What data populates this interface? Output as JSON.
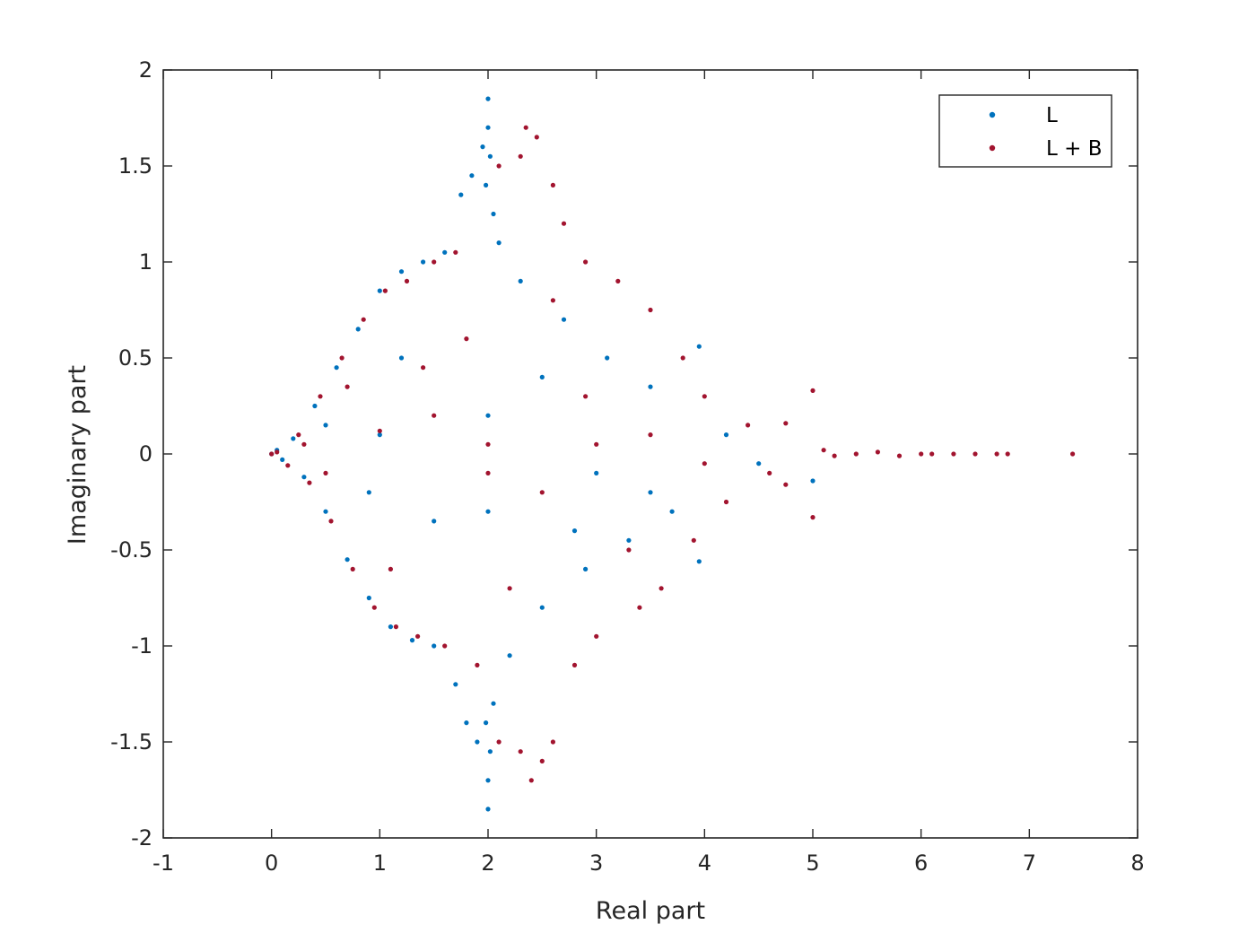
{
  "chart_data": {
    "type": "scatter",
    "title": "",
    "xlabel": "Real part",
    "ylabel": "Imaginary part",
    "xlim": [
      -1,
      8
    ],
    "ylim": [
      -2,
      2
    ],
    "xticks": [
      -1,
      0,
      1,
      2,
      3,
      4,
      5,
      6,
      7,
      8
    ],
    "yticks": [
      -2,
      -1.5,
      -1,
      -0.5,
      0,
      0.5,
      1,
      1.5,
      2
    ],
    "xtick_labels": [
      "-1",
      "0",
      "1",
      "2",
      "3",
      "4",
      "5",
      "6",
      "7",
      "8"
    ],
    "ytick_labels": [
      "-2",
      "-1.5",
      "-1",
      "-0.5",
      "0",
      "0.5",
      "1",
      "1.5",
      "2"
    ],
    "grid": false,
    "legend_position": "top-right",
    "series": [
      {
        "name": "L",
        "color": "#0072BD",
        "points": [
          [
            0.0,
            0.0
          ],
          [
            0.05,
            0.02
          ],
          [
            0.1,
            -0.03
          ],
          [
            0.2,
            0.08
          ],
          [
            0.3,
            -0.12
          ],
          [
            0.4,
            0.25
          ],
          [
            0.5,
            -0.3
          ],
          [
            0.6,
            0.45
          ],
          [
            0.7,
            -0.55
          ],
          [
            0.8,
            0.65
          ],
          [
            0.9,
            -0.75
          ],
          [
            1.0,
            0.85
          ],
          [
            1.1,
            -0.9
          ],
          [
            1.2,
            0.95
          ],
          [
            1.3,
            -0.97
          ],
          [
            1.4,
            1.0
          ],
          [
            1.5,
            -1.0
          ],
          [
            1.6,
            1.05
          ],
          [
            1.7,
            -1.2
          ],
          [
            1.75,
            1.35
          ],
          [
            1.8,
            -1.4
          ],
          [
            1.85,
            1.45
          ],
          [
            1.9,
            -1.5
          ],
          [
            1.95,
            1.6
          ],
          [
            2.0,
            1.85
          ],
          [
            2.0,
            -1.85
          ],
          [
            2.0,
            1.7
          ],
          [
            2.0,
            -1.7
          ],
          [
            2.02,
            1.55
          ],
          [
            2.02,
            -1.55
          ],
          [
            1.98,
            1.4
          ],
          [
            1.98,
            -1.4
          ],
          [
            2.05,
            1.25
          ],
          [
            2.05,
            -1.3
          ],
          [
            2.1,
            1.1
          ],
          [
            2.2,
            -1.05
          ],
          [
            2.3,
            0.9
          ],
          [
            2.5,
            -0.8
          ],
          [
            2.7,
            0.7
          ],
          [
            2.9,
            -0.6
          ],
          [
            3.1,
            0.5
          ],
          [
            3.3,
            -0.45
          ],
          [
            3.5,
            0.35
          ],
          [
            3.7,
            -0.3
          ],
          [
            3.95,
            0.56
          ],
          [
            3.95,
            -0.56
          ],
          [
            4.2,
            0.1
          ],
          [
            4.5,
            -0.05
          ],
          [
            5.0,
            -0.14
          ],
          [
            2.0,
            0.2
          ],
          [
            2.0,
            -0.3
          ],
          [
            1.0,
            0.1
          ],
          [
            3.0,
            -0.1
          ],
          [
            0.5,
            0.15
          ],
          [
            1.5,
            -0.35
          ],
          [
            2.5,
            0.4
          ],
          [
            3.5,
            -0.2
          ],
          [
            1.2,
            0.5
          ],
          [
            2.8,
            -0.4
          ],
          [
            0.9,
            -0.2
          ]
        ]
      },
      {
        "name": "L + B",
        "color": "#A2142F",
        "points": [
          [
            0.0,
            0.0
          ],
          [
            0.05,
            0.01
          ],
          [
            0.15,
            -0.06
          ],
          [
            0.25,
            0.1
          ],
          [
            0.35,
            -0.15
          ],
          [
            0.45,
            0.3
          ],
          [
            0.55,
            -0.35
          ],
          [
            0.65,
            0.5
          ],
          [
            0.75,
            -0.6
          ],
          [
            0.85,
            0.7
          ],
          [
            0.95,
            -0.8
          ],
          [
            1.05,
            0.85
          ],
          [
            1.15,
            -0.9
          ],
          [
            1.25,
            0.9
          ],
          [
            1.35,
            -0.95
          ],
          [
            1.5,
            1.0
          ],
          [
            1.6,
            -1.0
          ],
          [
            1.7,
            1.05
          ],
          [
            1.9,
            -1.1
          ],
          [
            2.1,
            1.5
          ],
          [
            2.1,
            -1.5
          ],
          [
            2.3,
            1.55
          ],
          [
            2.3,
            -1.55
          ],
          [
            2.35,
            1.7
          ],
          [
            2.4,
            -1.7
          ],
          [
            2.45,
            1.65
          ],
          [
            2.5,
            -1.6
          ],
          [
            2.6,
            1.4
          ],
          [
            2.6,
            -1.5
          ],
          [
            2.7,
            1.2
          ],
          [
            2.8,
            -1.1
          ],
          [
            2.9,
            1.0
          ],
          [
            3.0,
            -0.95
          ],
          [
            3.2,
            0.9
          ],
          [
            3.4,
            -0.8
          ],
          [
            3.5,
            0.75
          ],
          [
            3.6,
            -0.7
          ],
          [
            3.8,
            0.5
          ],
          [
            3.9,
            -0.45
          ],
          [
            4.0,
            0.3
          ],
          [
            4.2,
            -0.25
          ],
          [
            4.4,
            0.15
          ],
          [
            4.6,
            -0.1
          ],
          [
            4.75,
            0.16
          ],
          [
            4.75,
            -0.16
          ],
          [
            5.0,
            0.33
          ],
          [
            5.0,
            -0.33
          ],
          [
            5.1,
            0.02
          ],
          [
            5.2,
            -0.01
          ],
          [
            5.4,
            0.0
          ],
          [
            5.6,
            0.01
          ],
          [
            5.8,
            -0.01
          ],
          [
            6.0,
            0.0
          ],
          [
            6.1,
            0.0
          ],
          [
            6.3,
            0.0
          ],
          [
            6.5,
            0.0
          ],
          [
            6.7,
            0.0
          ],
          [
            6.8,
            0.0
          ],
          [
            7.4,
            0.0
          ],
          [
            2.0,
            0.05
          ],
          [
            2.0,
            -0.1
          ],
          [
            1.0,
            0.12
          ],
          [
            3.0,
            0.05
          ],
          [
            4.0,
            -0.05
          ],
          [
            0.5,
            -0.1
          ],
          [
            1.5,
            0.2
          ],
          [
            2.5,
            -0.2
          ],
          [
            3.5,
            0.1
          ],
          [
            1.8,
            0.6
          ],
          [
            2.2,
            -0.7
          ],
          [
            2.6,
            0.8
          ],
          [
            1.1,
            -0.6
          ],
          [
            0.7,
            0.35
          ],
          [
            3.3,
            -0.5
          ],
          [
            1.4,
            0.45
          ],
          [
            2.9,
            0.3
          ],
          [
            0.3,
            0.05
          ]
        ]
      }
    ]
  },
  "legend": {
    "items": [
      {
        "label": "L",
        "color": "#0072BD"
      },
      {
        "label": "L + B",
        "color": "#A2142F"
      }
    ]
  }
}
